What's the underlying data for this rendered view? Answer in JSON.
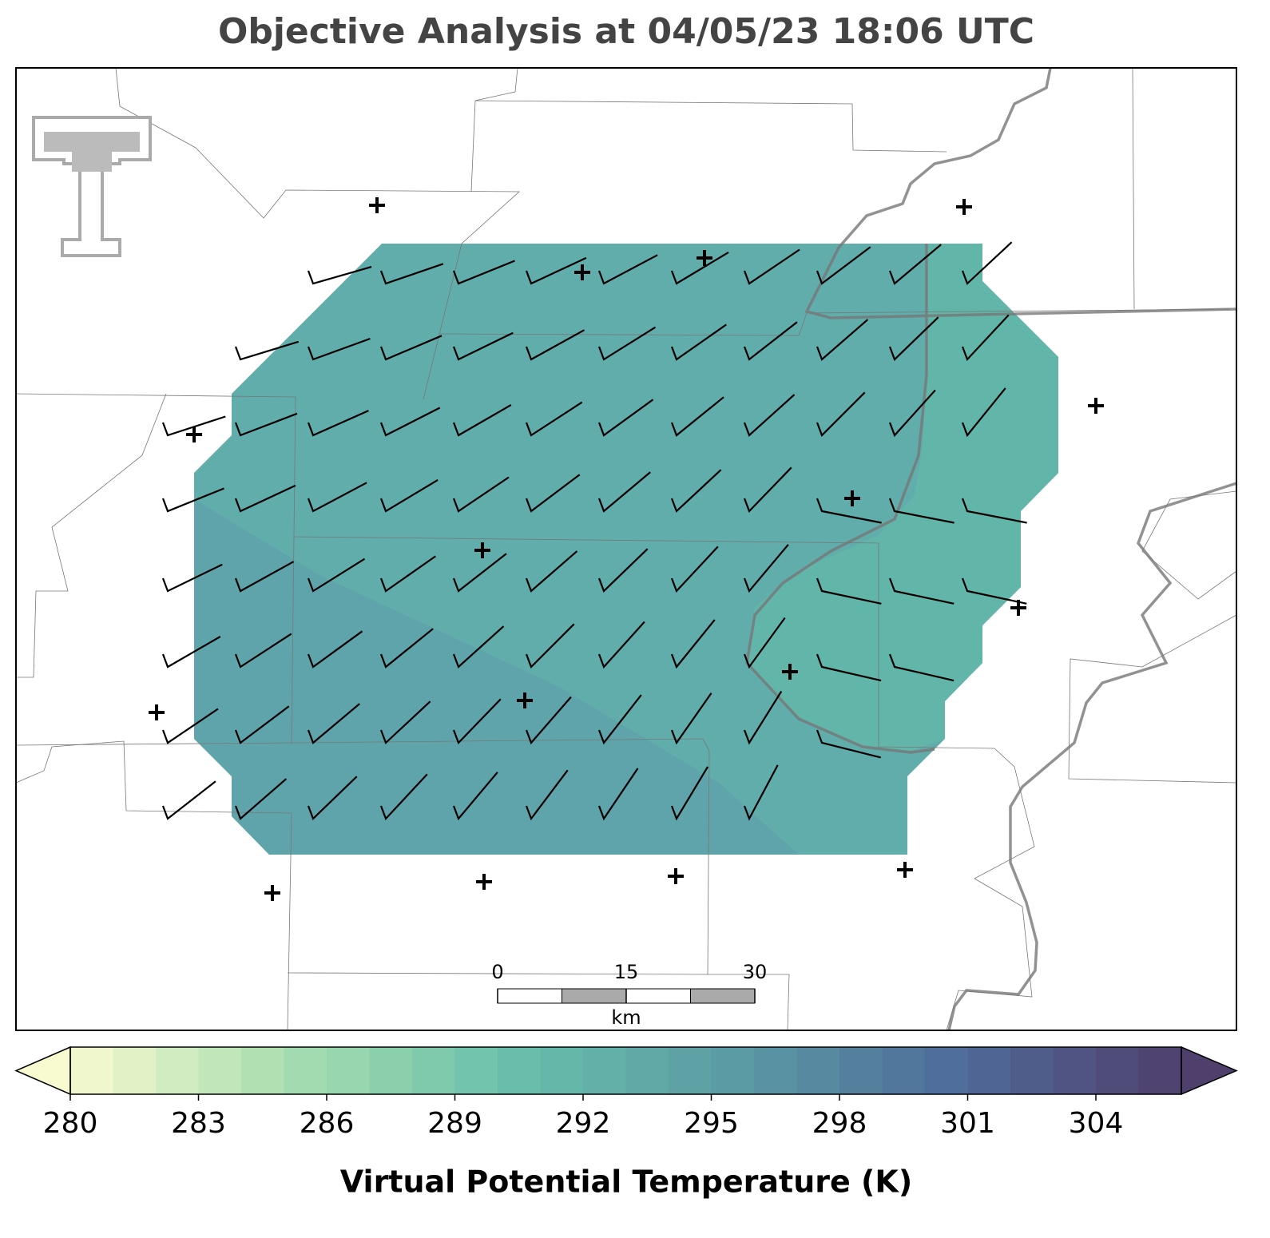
{
  "title": "Objective Analysis at 04/05/23 18:06 UTC",
  "colorbar": {
    "label": "Virtual Potential Temperature (K)",
    "range": [
      280,
      306
    ],
    "step": 1,
    "ticks": [
      280,
      283,
      286,
      289,
      292,
      295,
      298,
      301,
      304
    ],
    "colors": [
      "#f8fad0",
      "#a6ddaf",
      "#68bfab",
      "#5b9aa4",
      "#4f6b9a",
      "#4f3f6d"
    ]
  },
  "scale_bar": {
    "ticks": [
      0,
      15,
      30
    ],
    "unit": "km"
  }
}
